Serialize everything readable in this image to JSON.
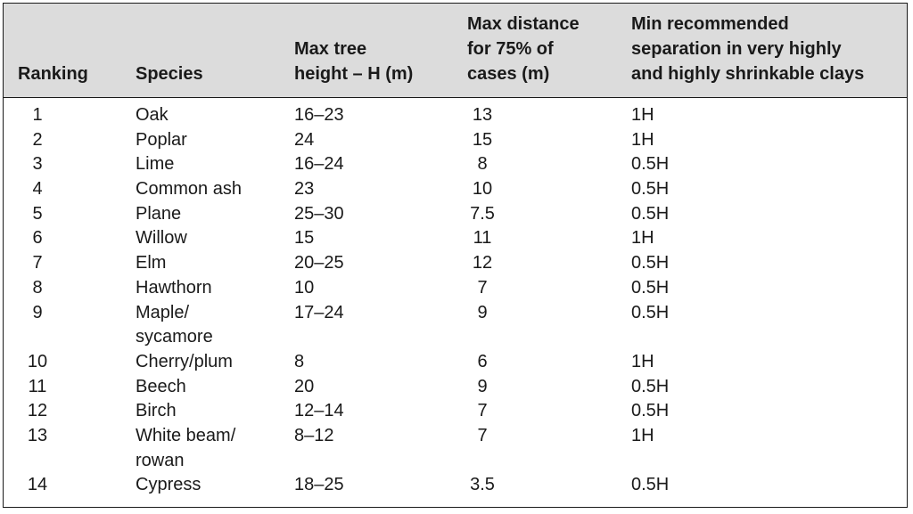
{
  "table": {
    "headers": {
      "ranking": "Ranking",
      "species": "Species",
      "height": "Max tree\nheight – H (m)",
      "distance": "Max distance\nfor 75% of\ncases (m)",
      "separation": "Min recommended\nseparation in very highly\nand highly shrinkable clays"
    },
    "rows": [
      {
        "rank": "1",
        "species": "Oak",
        "height": "16–23",
        "distance": "13",
        "separation": "1H",
        "lines": 1
      },
      {
        "rank": "2",
        "species": "Poplar",
        "height": "24",
        "distance": "15",
        "separation": "1H",
        "lines": 1
      },
      {
        "rank": "3",
        "species": "Lime",
        "height": "16–24",
        "distance": "8",
        "separation": "0.5H",
        "lines": 1
      },
      {
        "rank": "4",
        "species": "Common ash",
        "height": "23",
        "distance": "10",
        "separation": "0.5H",
        "lines": 1
      },
      {
        "rank": "5",
        "species": "Plane",
        "height": "25–30",
        "distance": "7.5",
        "separation": "0.5H",
        "lines": 1
      },
      {
        "rank": "6",
        "species": "Willow",
        "height": "15",
        "distance": "11",
        "separation": "1H",
        "lines": 1
      },
      {
        "rank": "7",
        "species": "Elm",
        "height": "20–25",
        "distance": "12",
        "separation": "0.5H",
        "lines": 1
      },
      {
        "rank": "8",
        "species": "Hawthorn",
        "height": "10",
        "distance": "7",
        "separation": "0.5H",
        "lines": 1
      },
      {
        "rank": "9",
        "species": "Maple/\nsycamore",
        "height": "17–24",
        "distance": "9",
        "separation": "0.5H",
        "lines": 2
      },
      {
        "rank": "10",
        "species": "Cherry/plum",
        "height": "8",
        "distance": "6",
        "separation": "1H",
        "lines": 1
      },
      {
        "rank": "11",
        "species": "Beech",
        "height": "20",
        "distance": "9",
        "separation": "0.5H",
        "lines": 1
      },
      {
        "rank": "12",
        "species": "Birch",
        "height": "12–14",
        "distance": "7",
        "separation": "0.5H",
        "lines": 1
      },
      {
        "rank": "13",
        "species": "White beam/\nrowan",
        "height": "8–12",
        "distance": "7",
        "separation": "1H",
        "lines": 2
      },
      {
        "rank": "14",
        "species": "Cypress",
        "height": "18–25",
        "distance": "3.5",
        "separation": "0.5H",
        "lines": 1
      }
    ]
  }
}
